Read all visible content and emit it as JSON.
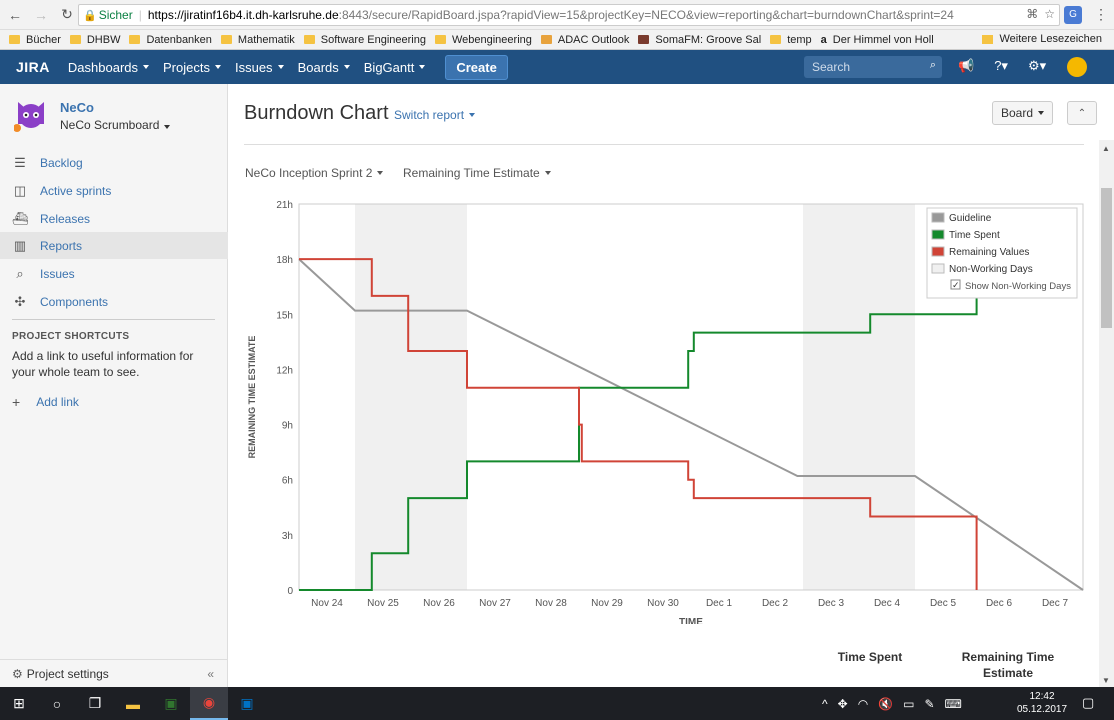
{
  "browser": {
    "secure_label": "Sicher",
    "url_host": "https://jiratinf16b4.it.dh-karlsruhe.de",
    "url_rest": ":8443/secure/RapidBoard.jspa?rapidView=15&projectKey=NECO&view=reporting&chart=burndownChart&sprint=24",
    "bookmarks": [
      "Bücher",
      "DHBW",
      "Datenbanken",
      "Mathematik",
      "Software Engineering",
      "Webengineering",
      "ADAC Outlook",
      "SomaFM: Groove Sal",
      "temp",
      "Der Himmel von Holl"
    ],
    "bookmarks_right": "Weitere Lesezeichen"
  },
  "header": {
    "logo": "JIRA",
    "menus": [
      "Dashboards",
      "Projects",
      "Issues",
      "Boards",
      "BigGantt"
    ],
    "create_label": "Create",
    "search_placeholder": "Search"
  },
  "sidebar": {
    "project_name": "NeCo",
    "board_name": "NeCo Scrumboard",
    "items": [
      {
        "label": "Backlog",
        "icon": "backlog-icon"
      },
      {
        "label": "Active sprints",
        "icon": "board-icon"
      },
      {
        "label": "Releases",
        "icon": "ship-icon"
      },
      {
        "label": "Reports",
        "icon": "chart-icon"
      },
      {
        "label": "Issues",
        "icon": "search-issues-icon"
      },
      {
        "label": "Components",
        "icon": "puzzle-icon"
      }
    ],
    "active_index": 3,
    "shortcuts_heading": "PROJECT SHORTCUTS",
    "shortcuts_text": "Add a link to useful information for your whole team to see.",
    "add_link": "Add link",
    "settings_label": "Project settings"
  },
  "main": {
    "title": "Burndown Chart",
    "switch_report": "Switch report",
    "board_button": "Board",
    "sprint_select": "NeCo Inception Sprint 2",
    "estimate_select": "Remaining Time Estimate",
    "table_headers": [
      "Time Spent",
      "Remaining Time Estimate"
    ]
  },
  "chart_data": {
    "type": "line",
    "xlabel": "TIME",
    "ylabel": "REMAINING TIME ESTIMATE",
    "x_ticks": [
      "Nov 24",
      "Nov 25",
      "Nov 26",
      "Nov 27",
      "Nov 28",
      "Nov 29",
      "Nov 30",
      "Dec 1",
      "Dec 2",
      "Dec 3",
      "Dec 4",
      "Dec 5",
      "Dec 6",
      "Dec 7"
    ],
    "y_ticks": [
      "0",
      "3h",
      "6h",
      "9h",
      "12h",
      "15h",
      "18h",
      "21h"
    ],
    "xlim_days": [
      0,
      14
    ],
    "ylim_hours": [
      0,
      21
    ],
    "non_working_days": [
      [
        1,
        3
      ],
      [
        9,
        11
      ]
    ],
    "legend": {
      "placement": "top-right",
      "entries": [
        {
          "name": "Guideline",
          "color": "#999999"
        },
        {
          "name": "Time Spent",
          "color": "#14892c"
        },
        {
          "name": "Remaining Values",
          "color": "#d04437"
        },
        {
          "name": "Non-Working Days",
          "color": "#f0f0f0"
        }
      ],
      "checkbox_label": "Show Non-Working Days",
      "checkbox_checked": true
    },
    "series": [
      {
        "name": "Guideline",
        "color": "#999999",
        "points": [
          [
            0,
            18
          ],
          [
            1,
            15.2
          ],
          [
            3,
            15.2
          ],
          [
            8.9,
            6.2
          ],
          [
            11,
            6.2
          ],
          [
            14,
            0
          ]
        ]
      },
      {
        "name": "Time Spent",
        "color": "#14892c",
        "points": [
          [
            0,
            0
          ],
          [
            1.3,
            0
          ],
          [
            1.3,
            2
          ],
          [
            1.95,
            2
          ],
          [
            1.95,
            5
          ],
          [
            3,
            5
          ],
          [
            3,
            7
          ],
          [
            5,
            7
          ],
          [
            5,
            11
          ],
          [
            6.95,
            11
          ],
          [
            6.95,
            13
          ],
          [
            7.05,
            13
          ],
          [
            7.05,
            14
          ],
          [
            10.2,
            14
          ],
          [
            10.2,
            15
          ],
          [
            12.1,
            15
          ],
          [
            12.1,
            16
          ]
        ]
      },
      {
        "name": "Remaining Values",
        "color": "#d04437",
        "points": [
          [
            0,
            18
          ],
          [
            1.3,
            18
          ],
          [
            1.3,
            16
          ],
          [
            1.95,
            16
          ],
          [
            1.95,
            13
          ],
          [
            3,
            13
          ],
          [
            3,
            11
          ],
          [
            5,
            11
          ],
          [
            5,
            9
          ],
          [
            5.05,
            9
          ],
          [
            5.05,
            7
          ],
          [
            6.95,
            7
          ],
          [
            6.95,
            6
          ],
          [
            7.05,
            6
          ],
          [
            7.05,
            5
          ],
          [
            10.2,
            5
          ],
          [
            10.2,
            4
          ],
          [
            12.1,
            4
          ],
          [
            12.1,
            0
          ]
        ]
      }
    ]
  },
  "taskbar": {
    "time": "12:42",
    "date": "05.12.2017"
  }
}
